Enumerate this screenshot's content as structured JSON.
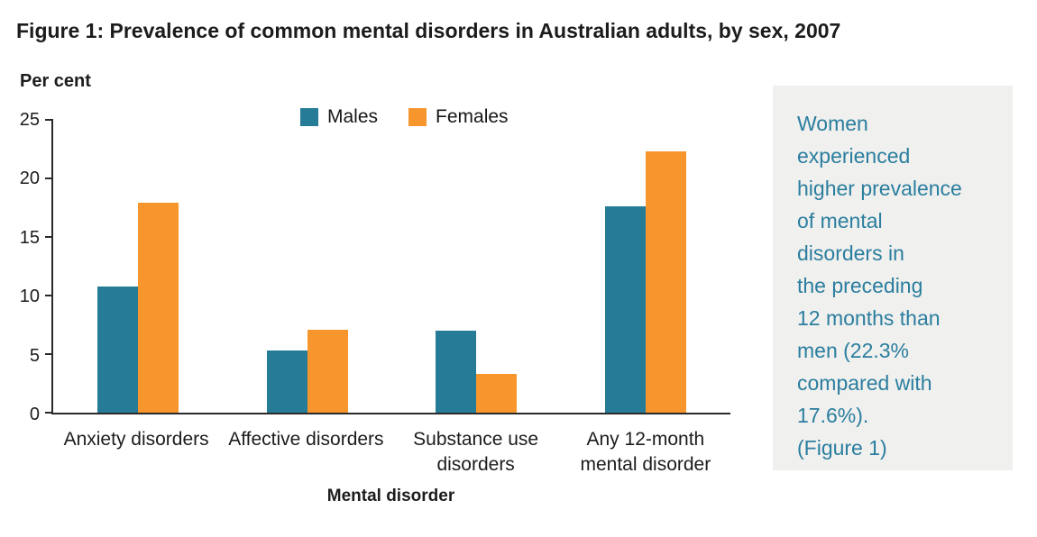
{
  "chart_data": {
    "type": "bar",
    "title": "Figure 1: Prevalence of common mental disorders in Australian adults, by sex, 2007",
    "ylabel": "Per cent",
    "xlabel": "Mental disorder",
    "categories": [
      "Anxiety disorders",
      "Affective disorders",
      "Substance use disorders",
      "Any 12-month mental disorder"
    ],
    "category_lines": [
      [
        "Anxiety disorders"
      ],
      [
        "Affective disorders"
      ],
      [
        "Substance use",
        "disorders"
      ],
      [
        "Any 12-month",
        "mental disorder"
      ]
    ],
    "series": [
      {
        "name": "Males",
        "color": "#267B96",
        "values": [
          10.8,
          5.3,
          7.0,
          17.6
        ]
      },
      {
        "name": "Females",
        "color": "#F8962E",
        "values": [
          17.9,
          7.1,
          3.3,
          22.3
        ]
      }
    ],
    "ylim": [
      0,
      25
    ],
    "yticks": [
      0,
      5,
      10,
      15,
      20,
      25
    ],
    "grid": false,
    "legend_position": "top-center"
  },
  "sidebar_note": {
    "text": "Women experienced higher prevalence of mental disorders in the preceding 12 months than men (22.3% compared with 17.6%). (Figure 1)",
    "lines": [
      "Women",
      "experienced",
      "higher prevalence",
      "of mental",
      "disorders in",
      "the preceding",
      "12 months than",
      "men (22.3%",
      "compared with",
      "17.6%).",
      "(Figure 1)"
    ],
    "text_color": "#2B7E9F",
    "background_color": "#F0F0EE"
  }
}
